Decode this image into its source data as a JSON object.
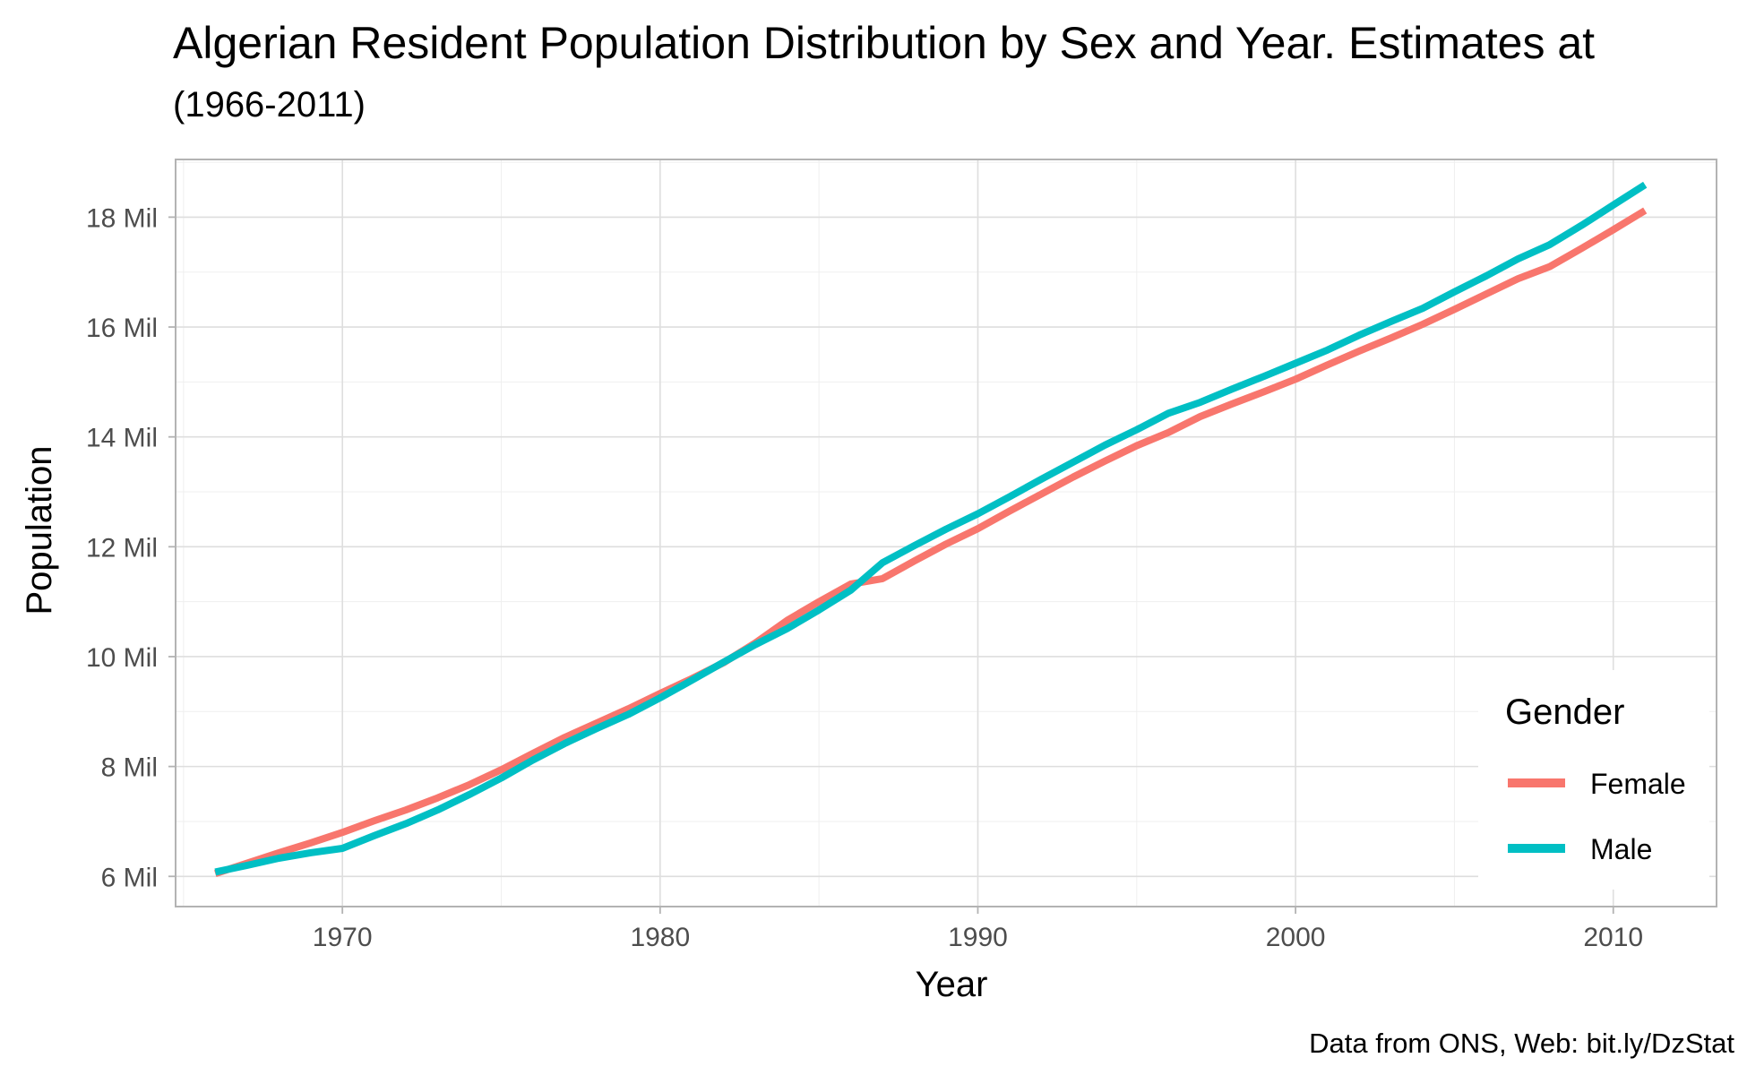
{
  "chart_data": {
    "type": "line",
    "title": "Algerian Resident Population Distribution by Sex and Year. Estimates at",
    "subtitle": "(1966-2011)",
    "xlabel": "Year",
    "ylabel": "Population",
    "caption": "Data from ONS, Web: bit.ly/DzStat",
    "x": [
      1966,
      1967,
      1968,
      1969,
      1970,
      1971,
      1972,
      1973,
      1974,
      1975,
      1976,
      1977,
      1978,
      1979,
      1980,
      1981,
      1982,
      1983,
      1984,
      1985,
      1986,
      1987,
      1988,
      1989,
      1990,
      1991,
      1992,
      1993,
      1994,
      1995,
      1996,
      1997,
      1998,
      1999,
      2000,
      2001,
      2002,
      2003,
      2004,
      2005,
      2006,
      2007,
      2008,
      2009,
      2010,
      2011
    ],
    "series": [
      {
        "name": "Female",
        "color": "#F8766D",
        "values": [
          6.05,
          6.24,
          6.43,
          6.61,
          6.8,
          7.01,
          7.21,
          7.43,
          7.67,
          7.94,
          8.24,
          8.53,
          8.79,
          9.05,
          9.33,
          9.6,
          9.89,
          10.25,
          10.66,
          11.0,
          11.32,
          11.42,
          11.74,
          12.05,
          12.33,
          12.65,
          12.96,
          13.27,
          13.56,
          13.84,
          14.08,
          14.37,
          14.6,
          14.82,
          15.05,
          15.31,
          15.56,
          15.8,
          16.05,
          16.32,
          16.6,
          16.88,
          17.1,
          17.43,
          17.77,
          18.12
        ]
      },
      {
        "name": "Male",
        "color": "#00BFC4",
        "values": [
          6.08,
          6.2,
          6.33,
          6.43,
          6.51,
          6.74,
          6.96,
          7.21,
          7.49,
          7.79,
          8.12,
          8.42,
          8.69,
          8.95,
          9.25,
          9.57,
          9.9,
          10.22,
          10.51,
          10.85,
          11.21,
          11.71,
          12.02,
          12.32,
          12.6,
          12.91,
          13.23,
          13.54,
          13.85,
          14.13,
          14.43,
          14.63,
          14.87,
          15.1,
          15.34,
          15.58,
          15.85,
          16.1,
          16.34,
          16.64,
          16.93,
          17.24,
          17.5,
          17.85,
          18.22,
          18.59
        ]
      }
    ],
    "xlim": [
      1964.75,
      2013.25
    ],
    "ylim": [
      5.45,
      19.05
    ],
    "x_ticks": [
      1970,
      1980,
      1990,
      2000,
      2010
    ],
    "x_tick_labels": [
      "1970",
      "1980",
      "1990",
      "2000",
      "2010"
    ],
    "y_ticks": [
      6,
      8,
      10,
      12,
      14,
      16,
      18
    ],
    "y_tick_labels": [
      "6 Mil",
      "8 Mil",
      "10 Mil",
      "12 Mil",
      "14 Mil",
      "16 Mil",
      "18 Mil"
    ],
    "grid": true,
    "legend": {
      "title": "Gender",
      "position": "bottom-right inside",
      "entries": [
        "Female",
        "Male"
      ]
    }
  }
}
